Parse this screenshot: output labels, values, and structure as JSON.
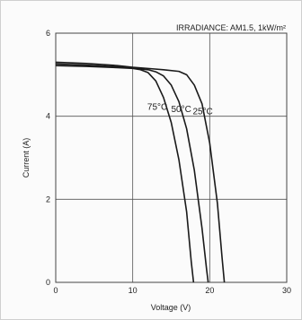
{
  "chart_data": {
    "type": "line",
    "title": "",
    "annotation": "IRRADIANCE: AM1.5, 1kW/m²",
    "xlabel": "Voltage (V)",
    "ylabel": "Current  (A)",
    "xlim": [
      0,
      30
    ],
    "ylim": [
      0,
      6
    ],
    "xticks": [
      "0",
      "10",
      "20",
      "30"
    ],
    "yticks": [
      "0",
      "2",
      "4",
      "6"
    ],
    "grid": true,
    "series": [
      {
        "name": "75°C",
        "color": "#1a1a1a",
        "points": [
          [
            0,
            5.22
          ],
          [
            4,
            5.2
          ],
          [
            8,
            5.17
          ],
          [
            10,
            5.15
          ],
          [
            11,
            5.12
          ],
          [
            12,
            5.05
          ],
          [
            13,
            4.85
          ],
          [
            14,
            4.45
          ],
          [
            15,
            3.85
          ],
          [
            16,
            2.95
          ],
          [
            17,
            1.7
          ],
          [
            17.6,
            0.5
          ],
          [
            17.9,
            0
          ]
        ]
      },
      {
        "name": "50°C",
        "color": "#1a1a1a",
        "points": [
          [
            0,
            5.26
          ],
          [
            4,
            5.23
          ],
          [
            8,
            5.19
          ],
          [
            10,
            5.16
          ],
          [
            12,
            5.12
          ],
          [
            13,
            5.07
          ],
          [
            14,
            4.97
          ],
          [
            15,
            4.75
          ],
          [
            16,
            4.35
          ],
          [
            17,
            3.7
          ],
          [
            18,
            2.7
          ],
          [
            19,
            1.3
          ],
          [
            19.6,
            0.3
          ],
          [
            19.8,
            0
          ]
        ]
      },
      {
        "name": "25°C",
        "color": "#1a1a1a",
        "points": [
          [
            0,
            5.3
          ],
          [
            4,
            5.27
          ],
          [
            8,
            5.22
          ],
          [
            10,
            5.18
          ],
          [
            12,
            5.15
          ],
          [
            14,
            5.12
          ],
          [
            16,
            5.08
          ],
          [
            17,
            5.0
          ],
          [
            18,
            4.75
          ],
          [
            19,
            4.3
          ],
          [
            20,
            3.35
          ],
          [
            21,
            1.9
          ],
          [
            21.6,
            0.6
          ],
          [
            21.9,
            0
          ]
        ]
      }
    ],
    "curve_labels": [
      {
        "text": "75°C",
        "x": 13.2,
        "y": 4.15
      },
      {
        "text": "50°C",
        "x": 16.3,
        "y": 4.1
      },
      {
        "text": "25°C",
        "x": 19.1,
        "y": 4.05
      }
    ]
  }
}
